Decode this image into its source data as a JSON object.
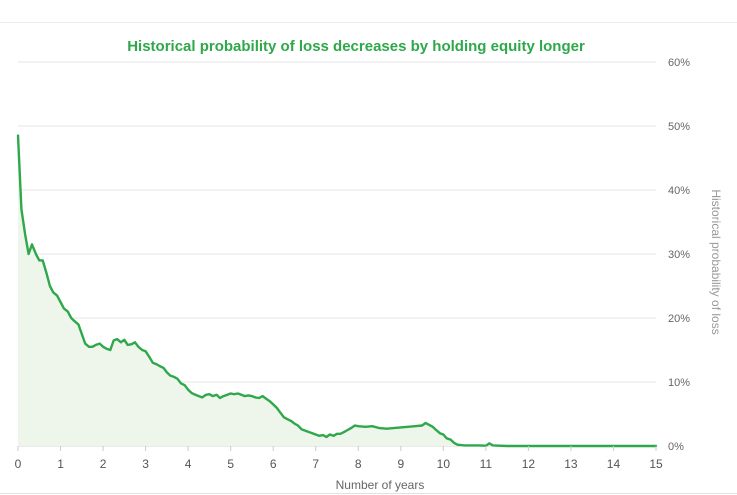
{
  "chart_data": {
    "type": "area",
    "title": "Historical probability of loss decreases by holding equity longer",
    "xlabel": "Number of years",
    "ylabel": "Historical probability of loss",
    "xlim": [
      0,
      15
    ],
    "ylim": [
      0,
      60
    ],
    "x_ticks": [
      "0",
      "1",
      "2",
      "3",
      "4",
      "5",
      "6",
      "7",
      "8",
      "9",
      "10",
      "11",
      "12",
      "13",
      "14",
      "15"
    ],
    "y_ticks": [
      "0%",
      "10%",
      "20%",
      "30%",
      "40%",
      "50%",
      "60%"
    ],
    "y_axis_side": "right",
    "grid": true,
    "legend": "none",
    "colors": {
      "line": "#2ea84a",
      "fill": "#eef6ec",
      "title": "#2ea84a"
    },
    "series": [
      {
        "x": [
          0,
          0.08,
          0.17,
          0.25,
          0.33,
          0.42,
          0.5,
          0.58,
          0.67,
          0.75,
          0.83,
          0.92,
          1.0,
          1.08,
          1.17,
          1.25,
          1.33,
          1.42,
          1.5,
          1.58,
          1.67,
          1.75,
          1.83,
          1.92,
          2.0,
          2.08,
          2.17,
          2.25,
          2.33,
          2.42,
          2.5,
          2.58,
          2.67,
          2.75,
          2.83,
          2.92,
          3.0,
          3.08,
          3.17,
          3.25,
          3.33,
          3.42,
          3.5,
          3.58,
          3.67,
          3.75,
          3.83,
          3.92,
          4.0,
          4.08,
          4.17,
          4.25,
          4.33,
          4.42,
          4.5,
          4.58,
          4.67,
          4.75,
          4.83,
          4.92,
          5.0,
          5.08,
          5.17,
          5.25,
          5.33,
          5.42,
          5.5,
          5.58,
          5.67,
          5.75,
          5.83,
          5.92,
          6.0,
          6.08,
          6.17,
          6.25,
          6.33,
          6.42,
          6.5,
          6.58,
          6.67,
          6.75,
          6.83,
          6.92,
          7.0,
          7.08,
          7.17,
          7.25,
          7.33,
          7.42,
          7.5,
          7.58,
          7.67,
          7.75,
          7.83,
          7.92,
          8.0,
          8.17,
          8.33,
          8.5,
          8.67,
          8.83,
          9.0,
          9.17,
          9.33,
          9.5,
          9.58,
          9.67,
          9.75,
          9.83,
          9.92,
          10.0,
          10.08,
          10.17,
          10.25,
          10.33,
          10.5,
          10.67,
          10.83,
          11.0,
          11.08,
          11.17,
          11.5,
          12,
          13,
          14,
          15
        ],
        "values": [
          48.5,
          37,
          33,
          30,
          31.5,
          30,
          29,
          29,
          27,
          25,
          24,
          23.5,
          22.5,
          21.5,
          21,
          20,
          19.5,
          19,
          17.5,
          16,
          15.5,
          15.5,
          15.8,
          16,
          15.5,
          15.2,
          15,
          16.5,
          16.7,
          16.2,
          16.6,
          15.8,
          15.9,
          16.2,
          15.5,
          15,
          14.8,
          14,
          13,
          12.8,
          12.5,
          12.2,
          11.5,
          11,
          10.8,
          10.5,
          9.8,
          9.5,
          8.8,
          8.3,
          8,
          7.8,
          7.6,
          8,
          8.1,
          7.8,
          8,
          7.5,
          7.8,
          8,
          8.2,
          8.1,
          8.2,
          8,
          7.8,
          7.9,
          7.8,
          7.6,
          7.5,
          7.8,
          7.4,
          7,
          6.5,
          6,
          5.2,
          4.5,
          4.2,
          3.9,
          3.5,
          3.2,
          2.6,
          2.4,
          2.2,
          2,
          1.8,
          1.6,
          1.7,
          1.4,
          1.8,
          1.6,
          1.9,
          1.9,
          2.2,
          2.5,
          2.8,
          3.2,
          3.1,
          3.0,
          3.1,
          2.8,
          2.7,
          2.8,
          2.9,
          3.0,
          3.1,
          3.2,
          3.6,
          3.3,
          3.0,
          2.5,
          2.0,
          1.8,
          1.2,
          1.0,
          0.5,
          0.2,
          0.1,
          0.1,
          0.1,
          0.05,
          0.4,
          0.1,
          0,
          0,
          0,
          0,
          0
        ]
      }
    ]
  }
}
